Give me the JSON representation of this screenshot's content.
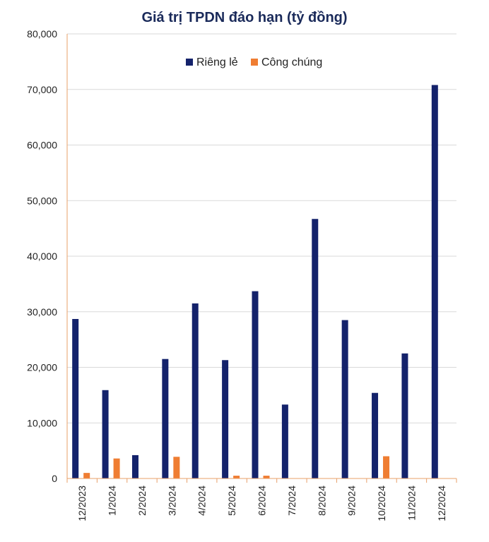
{
  "chart_data": {
    "type": "bar",
    "title": "Giá trị TPDN đáo hạn (tỷ đồng)",
    "xlabel": "",
    "ylabel": "",
    "ylim": [
      0,
      80000
    ],
    "yticks": [
      0,
      10000,
      20000,
      30000,
      40000,
      50000,
      60000,
      70000,
      80000
    ],
    "ytick_labels": [
      "0",
      "10,000",
      "20,000",
      "30,000",
      "40,000",
      "50,000",
      "60,000",
      "70,000",
      "80,000"
    ],
    "grid": true,
    "legend_position": "top-center",
    "categories": [
      "12/2023",
      "1/2024",
      "2/2024",
      "3/2024",
      "4/2024",
      "5/2024",
      "6/2024",
      "7/2024",
      "8/2024",
      "9/2024",
      "10/2024",
      "11/2024",
      "12/2024"
    ],
    "series": [
      {
        "name": "Riêng lẻ",
        "color": "#14226b",
        "values": [
          28700,
          15900,
          4200,
          21500,
          31500,
          21300,
          33700,
          13300,
          46700,
          28500,
          15400,
          22500,
          70800
        ]
      },
      {
        "name": "Công chúng",
        "color": "#ef7d32",
        "values": [
          1000,
          3600,
          0,
          3900,
          0,
          500,
          500,
          0,
          0,
          0,
          4000,
          0,
          0
        ]
      }
    ]
  }
}
